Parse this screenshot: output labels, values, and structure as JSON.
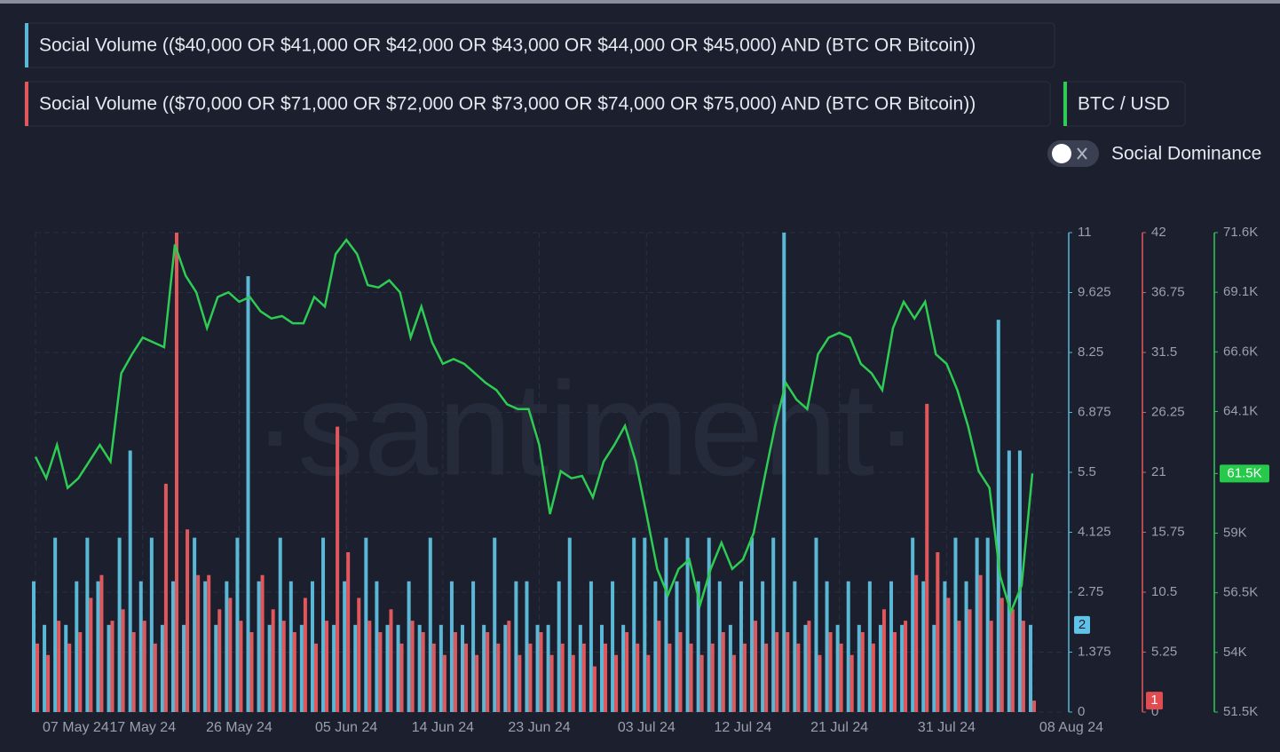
{
  "chart_data": {
    "type": "bar-line",
    "watermark": "·santiment·",
    "toggle_label": "Social Dominance",
    "categories": [
      "07 May 24",
      null,
      null,
      null,
      null,
      null,
      null,
      null,
      null,
      null,
      "17 May 24",
      null,
      null,
      null,
      null,
      null,
      null,
      null,
      null,
      "26 May 24",
      null,
      null,
      null,
      null,
      null,
      null,
      null,
      null,
      null,
      "05 Jun 24",
      null,
      null,
      null,
      null,
      null,
      null,
      null,
      null,
      "14 Jun 24",
      null,
      null,
      null,
      null,
      null,
      null,
      null,
      null,
      "23 Jun 24",
      null,
      null,
      null,
      null,
      null,
      null,
      null,
      null,
      null,
      "03 Jul 24",
      null,
      null,
      null,
      null,
      null,
      null,
      null,
      null,
      "12 Jul 24",
      null,
      null,
      null,
      null,
      null,
      null,
      null,
      null,
      "21 Jul 24",
      null,
      null,
      null,
      null,
      null,
      null,
      null,
      null,
      null,
      "31 Jul 24",
      null,
      null,
      null,
      null,
      null,
      null,
      null,
      "08 Aug 24"
    ],
    "series": [
      {
        "name": "Social Volume (($40,000 OR $41,000 OR $42,000 OR $43,000 OR $44,000 OR $45,000) AND (BTC OR Bitcoin))",
        "color": "#5ab8d6",
        "axis": "y",
        "values": [
          3,
          2,
          4,
          2,
          3,
          4,
          3,
          2,
          4,
          6,
          3,
          4,
          2,
          3,
          2,
          4,
          3,
          2,
          3,
          4,
          10,
          3,
          2,
          4,
          3,
          2,
          3,
          4,
          2,
          3,
          2,
          4,
          3,
          2,
          2,
          3,
          2,
          4,
          2,
          3,
          2,
          3,
          2,
          4,
          2,
          3,
          3,
          2,
          2,
          3,
          4,
          2,
          3,
          2,
          3,
          2,
          4,
          4,
          3,
          4,
          3,
          4,
          3,
          4,
          3,
          2,
          3,
          4,
          3,
          4,
          11,
          3,
          2,
          4,
          3,
          2,
          3,
          2,
          3,
          2,
          3,
          2,
          4,
          3,
          2,
          3,
          4,
          3,
          4,
          4,
          9,
          6,
          6,
          2
        ]
      },
      {
        "name": "Social Volume (($70,000 OR $71,000 OR $72,000 OR $73,000 OR $74,000 OR $75,000) AND (BTC OR Bitcoin))",
        "color": "#e0585b",
        "axis": "y2",
        "values": [
          6,
          5,
          8,
          6,
          7,
          10,
          12,
          8,
          9,
          7,
          8,
          6,
          20,
          42,
          16,
          12,
          12,
          9,
          10,
          8,
          7,
          12,
          9,
          8,
          7,
          10,
          6,
          8,
          25,
          14,
          10,
          8,
          7,
          9,
          6,
          8,
          7,
          6,
          5,
          7,
          6,
          5,
          7,
          6,
          8,
          5,
          6,
          7,
          5,
          6,
          5,
          6,
          4,
          6,
          5,
          7,
          6,
          5,
          8,
          6,
          7,
          6,
          5,
          6,
          7,
          5,
          6,
          8,
          6,
          7,
          7,
          6,
          8,
          5,
          7,
          6,
          5,
          7,
          6,
          9,
          7,
          8,
          12,
          27,
          14,
          10,
          8,
          9,
          12,
          8,
          10,
          9,
          8,
          1
        ]
      },
      {
        "name": "BTC / USD",
        "color": "#2ecc52",
        "axis": "y3",
        "values": [
          62200,
          61300,
          62700,
          60900,
          61300,
          62000,
          62700,
          62000,
          65700,
          66500,
          67200,
          67000,
          66800,
          71100,
          69800,
          69100,
          67600,
          68900,
          69100,
          68700,
          68900,
          68300,
          68000,
          68100,
          67800,
          67800,
          68900,
          68500,
          70700,
          71300,
          70700,
          69400,
          69300,
          69600,
          69100,
          67200,
          68500,
          67000,
          66100,
          66300,
          66100,
          65700,
          65300,
          65000,
          64400,
          64200,
          64200,
          62700,
          59800,
          61600,
          61300,
          61400,
          60500,
          62000,
          62700,
          63500,
          62000,
          59800,
          57500,
          56400,
          57500,
          57900,
          56000,
          57500,
          58600,
          57500,
          57900,
          59000,
          61300,
          63500,
          65300,
          64600,
          64200,
          66500,
          67200,
          67400,
          67200,
          66100,
          65700,
          65000,
          67600,
          68700,
          68000,
          68700,
          66500,
          66100,
          65000,
          63500,
          61600,
          60900,
          57200,
          55700,
          56800,
          61500
        ],
        "value_labels": [
          null,
          null,
          null,
          null,
          null,
          null,
          null,
          null,
          null,
          null,
          null,
          null,
          null,
          null,
          null,
          null,
          null,
          null,
          null,
          null,
          null,
          null,
          null,
          null,
          null,
          null,
          null,
          null,
          null,
          null,
          null,
          null,
          null,
          null,
          null,
          null,
          null,
          null,
          null,
          null,
          null,
          null,
          null,
          null,
          null,
          null,
          null,
          null,
          null,
          null,
          null,
          null,
          null,
          null,
          null,
          null,
          null,
          null,
          null,
          null,
          null,
          null,
          null,
          null,
          null,
          null,
          null,
          null,
          null,
          null,
          null,
          null,
          null,
          null,
          null,
          null,
          null,
          null,
          null,
          null,
          null,
          null,
          null,
          null,
          null,
          null,
          null,
          null,
          null,
          null,
          null,
          null,
          null,
          "61.5K"
        ]
      }
    ],
    "ylim": [
      0,
      11
    ],
    "yticks": [
      0,
      1.375,
      2.75,
      4.125,
      5.5,
      6.875,
      8.25,
      9.625,
      11
    ],
    "y2lim": [
      0,
      42
    ],
    "y2ticks": [
      0,
      5.25,
      10.5,
      15.75,
      21,
      26.25,
      31.5,
      36.75,
      42
    ],
    "y3lim": [
      51500,
      71600
    ],
    "y3ticks": [
      {
        "value": 51500,
        "label": "51.5K"
      },
      {
        "value": 54000,
        "label": "54K"
      },
      {
        "value": 56500,
        "label": "56.5K"
      },
      {
        "value": 59000,
        "label": "59K"
      },
      {
        "value": 61500,
        "label": "61.5K"
      },
      {
        "value": 64100,
        "label": "64.1K"
      },
      {
        "value": 66600,
        "label": "66.6K"
      },
      {
        "value": 69100,
        "label": "69.1K"
      },
      {
        "value": 71600,
        "label": "71.6K"
      }
    ],
    "grid": true
  }
}
